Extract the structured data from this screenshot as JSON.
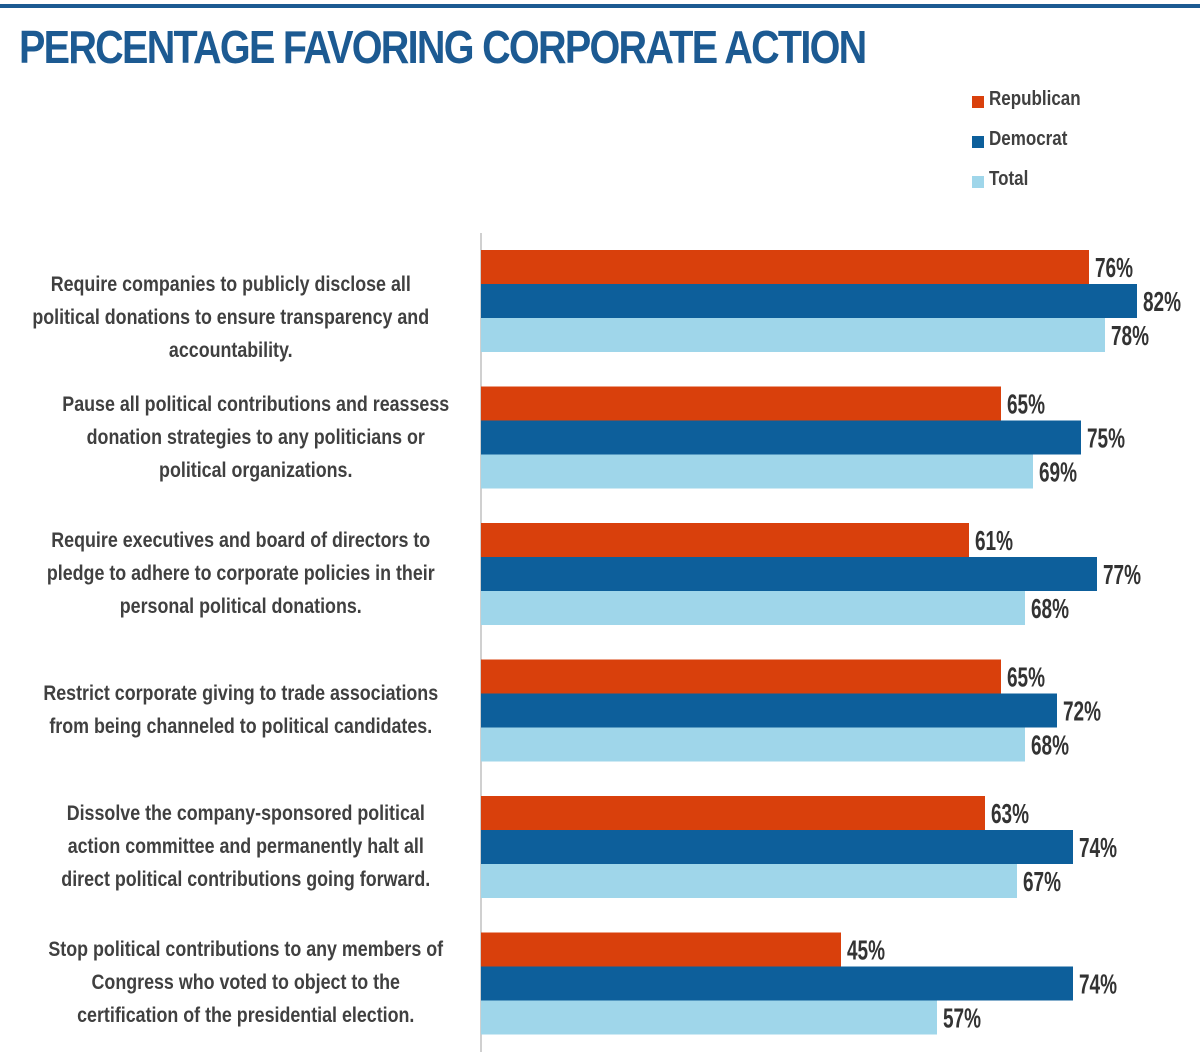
{
  "title": "PERCENTAGE FAVORING CORPORATE ACTION",
  "legend": [
    {
      "name": "Republican",
      "color": "#d9400c"
    },
    {
      "name": "Democrat",
      "color": "#0d5f9b"
    },
    {
      "name": "Total",
      "color": "#9fd6ea"
    }
  ],
  "chart_data": {
    "type": "bar",
    "orientation": "horizontal",
    "title": "PERCENTAGE FAVORING CORPORATE ACTION",
    "categories": [
      "Require companies to publicly disclose all political donations to ensure transparency and accountability.",
      "Pause all political contributions and reassess donation strategies to any politicians or political organizations.",
      "Require executives and board of directors to pledge to adhere to corporate policies in their personal political donations.",
      "Restrict corporate giving to trade associations from being channeled to political candidates.",
      "Dissolve the company-sponsored political action committee and permanently halt all direct political contributions going forward.",
      "Stop political contributions to any members of Congress who voted to object to the certification of the presidential election."
    ],
    "series": [
      {
        "name": "Republican",
        "color": "#d9400c",
        "values": [
          76,
          65,
          61,
          65,
          63,
          45
        ],
        "labels": [
          "76%",
          "65%",
          "61%",
          "65%",
          "63%",
          "45%"
        ]
      },
      {
        "name": "Democrat",
        "color": "#0d5f9b",
        "values": [
          82,
          75,
          77,
          72,
          74,
          74
        ],
        "labels": [
          "82%",
          "75%",
          "77%",
          "72%",
          "74%",
          "74%"
        ]
      },
      {
        "name": "Total",
        "color": "#9fd6ea",
        "values": [
          78,
          69,
          68,
          68,
          67,
          57
        ],
        "labels": [
          "78%",
          "69%",
          "68%",
          "68%",
          "67%",
          "57%"
        ]
      }
    ],
    "xlim": [
      0,
      100
    ],
    "unit": "%",
    "grid": false,
    "legend_position": "top-right",
    "data_labels": true
  }
}
